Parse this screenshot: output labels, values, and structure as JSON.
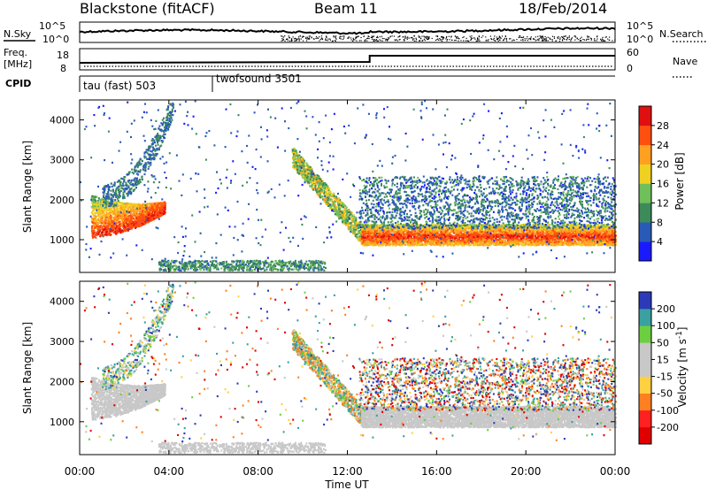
{
  "header": {
    "station": "Blackstone (fitACF)",
    "beam": "Beam 11",
    "date": "18/Feb/2014"
  },
  "status_panels": {
    "nsky_label": "N.Sky",
    "nsearch_label": "N.Search",
    "freq_label_top": "Freq.",
    "freq_label_bottom": "[MHz]",
    "nave_label": "Nave",
    "cpid_label": "CPID",
    "noise_ticks": [
      "10^5",
      "10^0"
    ],
    "freq_ticks": [
      "18",
      "8"
    ],
    "nave_ticks": [
      "60",
      "0"
    ],
    "cpid_segments": [
      {
        "label": "tau (fast) 503",
        "start_hour": 0,
        "end_hour": 6
      },
      {
        "label": "twofsound 3501",
        "start_hour": 6,
        "end_hour": 24
      }
    ]
  },
  "chart_data": [
    {
      "type": "heatmap",
      "title": "Power",
      "xlabel": "Time UT",
      "ylabel": "Slant Range [km]",
      "xlim": [
        0,
        24
      ],
      "ylim": [
        180,
        4500
      ],
      "x_tick_labels": [
        "00:00",
        "04:00",
        "08:00",
        "12:00",
        "16:00",
        "20:00",
        "00:00"
      ],
      "x_ticks": [
        0,
        4,
        8,
        12,
        16,
        20,
        24
      ],
      "y_ticks": [
        1000,
        2000,
        3000,
        4000
      ],
      "colorbar": {
        "label": "Power [dB]",
        "ticks": [
          "4",
          "8",
          "12",
          "16",
          "20",
          "24",
          "28"
        ],
        "colors": [
          "#1a1aff",
          "#2a5ab8",
          "#3d8a5a",
          "#6fbf5a",
          "#f0d020",
          "#ffa020",
          "#ff5010",
          "#e01010"
        ]
      },
      "features": [
        {
          "name": "ground scatter arc (early)",
          "x_range": [
            0.5,
            3.8
          ],
          "slant_range_km": [
            1000,
            2400
          ],
          "power_db": 28
        },
        {
          "name": "ground scatter (late)",
          "x_range": [
            12.5,
            24
          ],
          "slant_range_km": [
            900,
            1300
          ],
          "power_db": 28
        },
        {
          "name": "descending band",
          "x_range": [
            9.5,
            12.8
          ],
          "slant_range_km": [
            1000,
            3000
          ],
          "power_db": 14
        },
        {
          "name": "near-range echoes",
          "x_range": [
            3.5,
            11
          ],
          "slant_range_km": [
            200,
            500
          ],
          "power_db": 10
        }
      ]
    },
    {
      "type": "heatmap",
      "title": "Velocity",
      "xlabel": "Time UT",
      "ylabel": "Slant Range [km]",
      "xlim": [
        0,
        24
      ],
      "ylim": [
        180,
        4500
      ],
      "x_tick_labels": [
        "00:00",
        "04:00",
        "08:00",
        "12:00",
        "16:00",
        "20:00",
        "00:00"
      ],
      "x_ticks": [
        0,
        4,
        8,
        12,
        16,
        20,
        24
      ],
      "y_ticks": [
        1000,
        2000,
        3000,
        4000
      ],
      "colorbar": {
        "label": "Velocity [m s^-1]",
        "ticks": [
          "200",
          "100",
          "50",
          "15",
          "-15",
          "-50",
          "-100",
          "-200"
        ],
        "colors": [
          "#2a3ab8",
          "#3aa0a0",
          "#6ccf40",
          "#c8c8c8",
          "#c8c8c8",
          "#ffd040",
          "#ff8020",
          "#ff2020",
          "#e00000"
        ]
      }
    }
  ]
}
